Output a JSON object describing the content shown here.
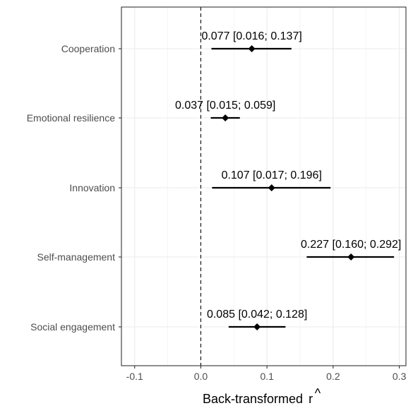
{
  "chart_data": {
    "type": "forest",
    "xlabel": "Back-transformed r̂",
    "xlabel_text": "Back-transformed",
    "xlabel_symbol": "r",
    "xlabel_accent": "^",
    "xlim": [
      -0.12,
      0.31
    ],
    "x_ticks": [
      -0.1,
      0.0,
      0.1,
      0.2,
      0.3
    ],
    "x_tick_labels": [
      "-0.1",
      "0.0",
      "0.1",
      "0.2",
      "0.3"
    ],
    "reference_line": 0,
    "grid": true,
    "categories": [
      "Cooperation",
      "Emotional resilience",
      "Innovation",
      "Self-management",
      "Social engagement"
    ],
    "estimates": [
      0.077,
      0.037,
      0.107,
      0.227,
      0.085
    ],
    "ci_lower": [
      0.016,
      0.015,
      0.017,
      0.16,
      0.042
    ],
    "ci_upper": [
      0.137,
      0.059,
      0.196,
      0.292,
      0.128
    ],
    "labels": [
      "0.077 [0.016; 0.137]",
      "0.037 [0.015; 0.059]",
      "0.107 [0.017; 0.196]",
      "0.227 [0.160; 0.292]",
      "0.085 [0.042; 0.128]"
    ]
  }
}
